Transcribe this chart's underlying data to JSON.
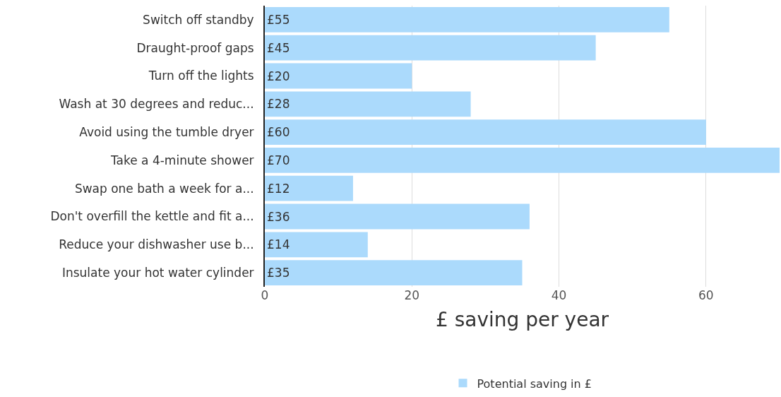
{
  "chart_data": {
    "type": "bar",
    "orientation": "horizontal",
    "xlabel": "£ saving per year",
    "categories": [
      "Switch off standby",
      "Draught-proof gaps",
      "Turn off the lights",
      "Wash at 30 degrees and reduc...",
      "Avoid using the tumble dryer",
      "Take a 4-minute shower",
      "Swap one bath a week for a...",
      "Don't overfill the kettle and fit a...",
      "Reduce your dishwasher use b...",
      "Insulate your hot water cylinder"
    ],
    "series": [
      {
        "name": "Potential saving in £",
        "color": "#abdafc",
        "values": [
          55,
          45,
          20,
          28,
          60,
          70,
          12,
          36,
          14,
          35
        ],
        "value_labels": [
          "£55",
          "£45",
          "£20",
          "£28",
          "£60",
          "£70",
          "£12",
          "£36",
          "£14",
          "£35"
        ]
      }
    ],
    "xlim": [
      0,
      70
    ],
    "xticks": [
      0,
      20,
      40,
      60
    ],
    "grid": "x",
    "legend": "bottom"
  }
}
